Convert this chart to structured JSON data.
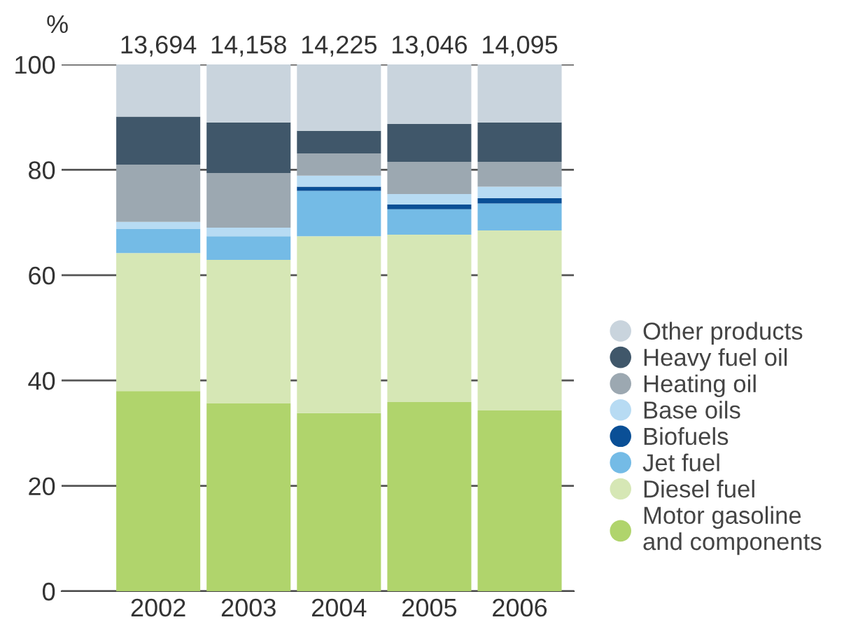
{
  "chart_data": {
    "type": "bar",
    "stacked": true,
    "ylabel": "%",
    "categories": [
      "2002",
      "2003",
      "2004",
      "2005",
      "2006"
    ],
    "series": [
      {
        "name": "Motor gasoline\nand components",
        "color": "#b0d46c",
        "values": [
          38.0,
          35.7,
          33.8,
          35.9,
          34.3
        ]
      },
      {
        "name": "Diesel fuel",
        "color": "#d6e7b5",
        "values": [
          26.2,
          27.2,
          33.6,
          31.8,
          34.2
        ]
      },
      {
        "name": "Jet fuel",
        "color": "#74bbe6",
        "values": [
          4.6,
          4.5,
          8.6,
          4.8,
          5.1
        ]
      },
      {
        "name": "Biofuels",
        "color": "#0a4f96",
        "values": [
          0,
          0,
          0.8,
          0.9,
          1.0
        ]
      },
      {
        "name": "Base oils",
        "color": "#b7dbf3",
        "values": [
          1.3,
          1.6,
          2.1,
          2.0,
          2.2
        ]
      },
      {
        "name": "Heating oil",
        "color": "#9ca8b1",
        "values": [
          10.9,
          10.4,
          4.2,
          6.1,
          4.7
        ]
      },
      {
        "name": "Heavy fuel oil",
        "color": "#40576a",
        "values": [
          9.1,
          9.6,
          4.3,
          7.2,
          7.5
        ]
      },
      {
        "name": "Other products",
        "color": "#c9d4dd",
        "values": [
          9.9,
          11.0,
          12.6,
          11.3,
          11.0
        ]
      }
    ],
    "annotations": [
      {
        "text": "13,694",
        "x": "2002",
        "y": 100
      },
      {
        "text": "14,158",
        "x": "2003",
        "y": 100
      },
      {
        "text": "14,225",
        "x": "2004",
        "y": 100
      },
      {
        "text": "13,046",
        "x": "2005",
        "y": 100
      },
      {
        "text": "14,095",
        "x": "2006",
        "y": 100
      }
    ],
    "ylim": [
      0,
      100
    ],
    "yticks": [
      0,
      20,
      40,
      60,
      80,
      100
    ],
    "grid": "y",
    "legend": "right",
    "marker": "circle"
  }
}
